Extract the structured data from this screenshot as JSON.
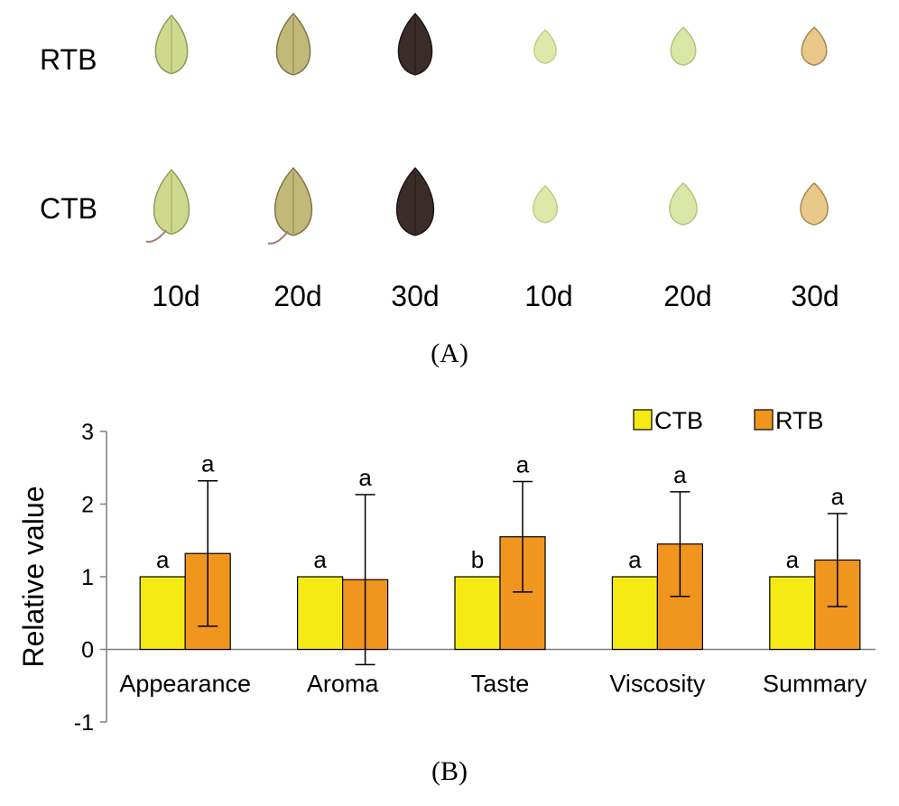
{
  "panel_a": {
    "rows": [
      "RTB",
      "CTB"
    ],
    "days_group1": [
      "10d",
      "20d",
      "30d"
    ],
    "days_group2": [
      "10d",
      "20d",
      "30d"
    ],
    "label": "(A)",
    "colors": {
      "husk_green": "#c9d48a",
      "husk_dark": "#3a2c28",
      "kernel_pale": "#dfe8a8",
      "kernel_ripe": "#e8c98a"
    }
  },
  "panel_b": {
    "label": "(B)"
  },
  "chart_data": {
    "type": "bar",
    "title": "",
    "xlabel": "",
    "ylabel": "Relative value",
    "ylim": [
      -1,
      3
    ],
    "yticks": [
      -1,
      0,
      1,
      2,
      3
    ],
    "categories": [
      "Appearance",
      "Aroma",
      "Taste",
      "Viscosity",
      "Summary"
    ],
    "legend_position": "top-right",
    "series": [
      {
        "name": "CTB",
        "color": "#f5ea14",
        "values": [
          1,
          1,
          1,
          1,
          1
        ],
        "errors": [
          0,
          0,
          0,
          0,
          0
        ],
        "sig_labels": [
          "a",
          "a",
          "b",
          "a",
          "a"
        ]
      },
      {
        "name": "RTB",
        "color": "#f0961f",
        "values": [
          1.32,
          0.96,
          1.55,
          1.45,
          1.23
        ],
        "errors": [
          1.0,
          1.17,
          0.76,
          0.72,
          0.64
        ],
        "sig_labels": [
          "a",
          "a",
          "a",
          "a",
          "a"
        ]
      }
    ]
  }
}
